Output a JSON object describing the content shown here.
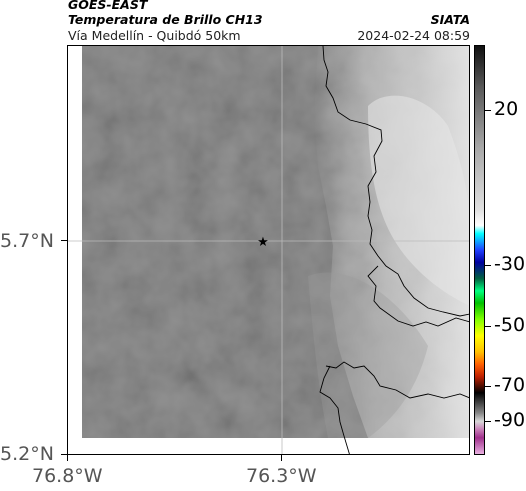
{
  "header": {
    "satellite": "GOES-EAST",
    "product": "Temperatura de Brillo CH13",
    "region": "Vía Medellín - Quibdó 50km",
    "organization": "SIATA",
    "timestamp": "2024-02-24 08:59"
  },
  "map": {
    "marker_icon": "star-icon",
    "colors": {
      "background_cloudfree": "#7a7a7a",
      "cloud_light": "#d0d0d0",
      "border_line": "#000000",
      "grid": "#bbbbbb"
    },
    "lon_labels": [
      "76.8°W",
      "76.3°W"
    ],
    "lat_labels": [
      "5.7°N",
      "5.2°N"
    ]
  },
  "colorbar": {
    "labels": [
      "20",
      "-30",
      "-50",
      "-70",
      "-90"
    ]
  }
}
